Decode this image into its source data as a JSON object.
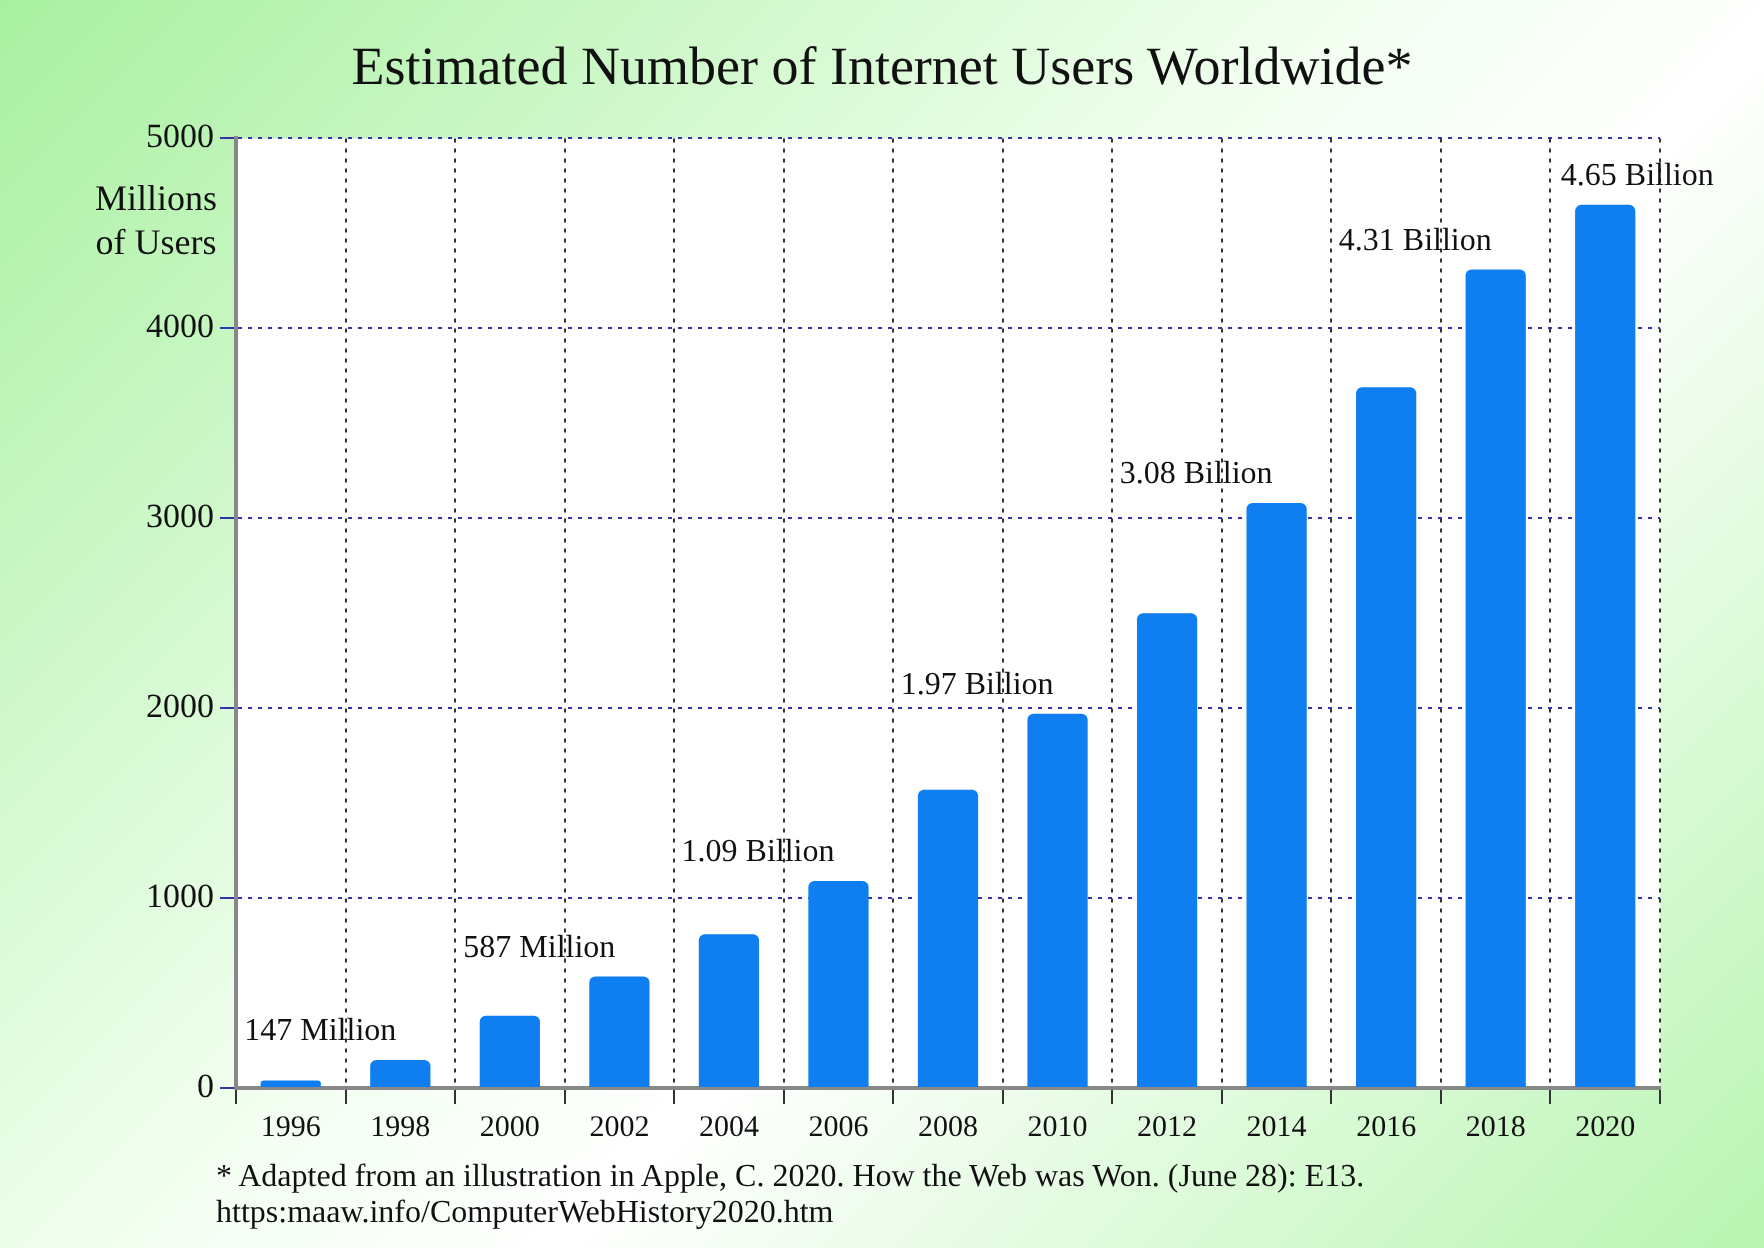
{
  "chart_data": {
    "type": "bar",
    "title": "Estimated Number of Internet Users Worldwide*",
    "ylabel": "Millions of Users",
    "categories": [
      "1996",
      "1998",
      "2000",
      "2002",
      "2004",
      "2006",
      "2008",
      "2010",
      "2012",
      "2014",
      "2016",
      "2018",
      "2020"
    ],
    "values": [
      40,
      147,
      380,
      587,
      810,
      1090,
      1570,
      1970,
      2500,
      3080,
      3690,
      4310,
      4650
    ],
    "color": "#0f7ef0",
    "ylim": [
      0,
      5000
    ],
    "yticks": [
      0,
      1000,
      2000,
      3000,
      4000,
      5000
    ],
    "grid": true,
    "annotations": [
      {
        "text": "147 Million",
        "x": "1998",
        "y": 147
      },
      {
        "text": "587 Million",
        "x": "2002",
        "y": 587
      },
      {
        "text": "1.09 Billion",
        "x": "2006",
        "y": 1090
      },
      {
        "text": "1.97 Billion",
        "x": "2010",
        "y": 1970
      },
      {
        "text": "3.08 Billion",
        "x": "2014",
        "y": 3080
      },
      {
        "text": "4.31 Billion",
        "x": "2018",
        "y": 4310
      },
      {
        "text": "4.65 Billion",
        "x": "2020",
        "y": 4650
      },
      "* Adapted from an illustration in Apple, C. 2020. How the Web was Won. (June 28): E13.  https:maaw.info/ComputerWebHistory2020.htm"
    ]
  }
}
